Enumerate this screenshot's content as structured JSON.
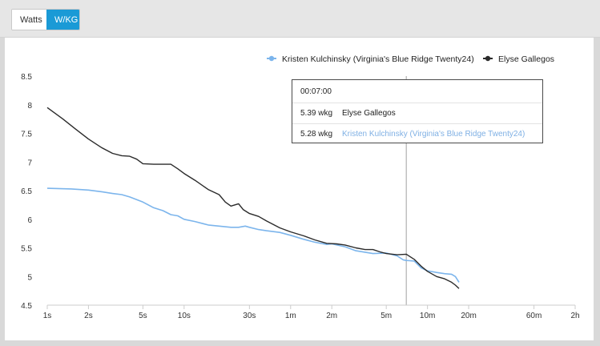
{
  "toggle": {
    "watts_label": "Watts",
    "wkg_label": "W/KG",
    "active": "W/KG",
    "active_color": "#1a9ad6"
  },
  "tooltip": {
    "time": "00:07:00",
    "rows": [
      {
        "value": "5.39 wkg",
        "name": "Elyse Gallegos"
      },
      {
        "value": "5.28 wkg",
        "name": "Kristen Kulchinsky (Virginia's Blue Ridge Twenty24)"
      }
    ]
  },
  "chart_data": {
    "type": "line",
    "x_scale": "log",
    "x_unit": "seconds",
    "x_ticks": [
      {
        "v": 1,
        "label": "1s"
      },
      {
        "v": 2,
        "label": "2s"
      },
      {
        "v": 5,
        "label": "5s"
      },
      {
        "v": 10,
        "label": "10s"
      },
      {
        "v": 30,
        "label": "30s"
      },
      {
        "v": 60,
        "label": "1m"
      },
      {
        "v": 120,
        "label": "2m"
      },
      {
        "v": 300,
        "label": "5m"
      },
      {
        "v": 600,
        "label": "10m"
      },
      {
        "v": 1200,
        "label": "20m"
      },
      {
        "v": 3600,
        "label": "60m"
      },
      {
        "v": 7200,
        "label": "2h"
      }
    ],
    "xlim": [
      1,
      7200
    ],
    "ylim": [
      4.5,
      8.5
    ],
    "y_ticks": [
      4.5,
      5,
      5.5,
      6,
      6.5,
      7,
      7.5,
      8,
      8.5
    ],
    "grid": false,
    "legend_position": "top-right",
    "crosshair_x": 420,
    "series": [
      {
        "name": "Kristen Kulchinsky (Virginia's Blue Ridge Twenty24)",
        "color": "#7cb5ec",
        "points": [
          [
            1,
            6.54
          ],
          [
            1.5,
            6.53
          ],
          [
            2,
            6.51
          ],
          [
            2.5,
            6.48
          ],
          [
            3,
            6.45
          ],
          [
            3.5,
            6.43
          ],
          [
            4,
            6.39
          ],
          [
            5,
            6.3
          ],
          [
            6,
            6.2
          ],
          [
            7,
            6.15
          ],
          [
            8,
            6.08
          ],
          [
            9,
            6.06
          ],
          [
            10,
            6.0
          ],
          [
            12,
            5.96
          ],
          [
            15,
            5.9
          ],
          [
            18,
            5.88
          ],
          [
            22,
            5.86
          ],
          [
            25,
            5.86
          ],
          [
            28,
            5.88
          ],
          [
            30,
            5.86
          ],
          [
            35,
            5.82
          ],
          [
            40,
            5.8
          ],
          [
            50,
            5.77
          ],
          [
            60,
            5.72
          ],
          [
            75,
            5.65
          ],
          [
            90,
            5.6
          ],
          [
            110,
            5.56
          ],
          [
            120,
            5.57
          ],
          [
            150,
            5.52
          ],
          [
            180,
            5.45
          ],
          [
            240,
            5.4
          ],
          [
            300,
            5.41
          ],
          [
            360,
            5.36
          ],
          [
            400,
            5.29
          ],
          [
            420,
            5.28
          ],
          [
            480,
            5.27
          ],
          [
            540,
            5.15
          ],
          [
            600,
            5.1
          ],
          [
            700,
            5.07
          ],
          [
            800,
            5.05
          ],
          [
            900,
            5.04
          ],
          [
            960,
            5.0
          ],
          [
            1020,
            4.9
          ]
        ]
      },
      {
        "name": "Elyse Gallegos",
        "color": "#2b2b2b",
        "points": [
          [
            1,
            7.95
          ],
          [
            1.3,
            7.75
          ],
          [
            1.6,
            7.58
          ],
          [
            2,
            7.4
          ],
          [
            2.5,
            7.25
          ],
          [
            3,
            7.15
          ],
          [
            3.5,
            7.11
          ],
          [
            4,
            7.1
          ],
          [
            4.5,
            7.05
          ],
          [
            5,
            6.97
          ],
          [
            6,
            6.96
          ],
          [
            7,
            6.96
          ],
          [
            8,
            6.96
          ],
          [
            9,
            6.88
          ],
          [
            10,
            6.8
          ],
          [
            12,
            6.68
          ],
          [
            15,
            6.52
          ],
          [
            18,
            6.43
          ],
          [
            20,
            6.3
          ],
          [
            22,
            6.23
          ],
          [
            25,
            6.27
          ],
          [
            27,
            6.17
          ],
          [
            30,
            6.1
          ],
          [
            35,
            6.05
          ],
          [
            40,
            5.97
          ],
          [
            50,
            5.85
          ],
          [
            60,
            5.78
          ],
          [
            75,
            5.71
          ],
          [
            90,
            5.64
          ],
          [
            110,
            5.58
          ],
          [
            130,
            5.57
          ],
          [
            150,
            5.55
          ],
          [
            180,
            5.5
          ],
          [
            210,
            5.47
          ],
          [
            240,
            5.47
          ],
          [
            270,
            5.43
          ],
          [
            300,
            5.4
          ],
          [
            360,
            5.38
          ],
          [
            420,
            5.39
          ],
          [
            480,
            5.3
          ],
          [
            540,
            5.18
          ],
          [
            600,
            5.09
          ],
          [
            700,
            5.0
          ],
          [
            800,
            4.96
          ],
          [
            900,
            4.9
          ],
          [
            960,
            4.85
          ],
          [
            1020,
            4.79
          ]
        ]
      }
    ]
  }
}
